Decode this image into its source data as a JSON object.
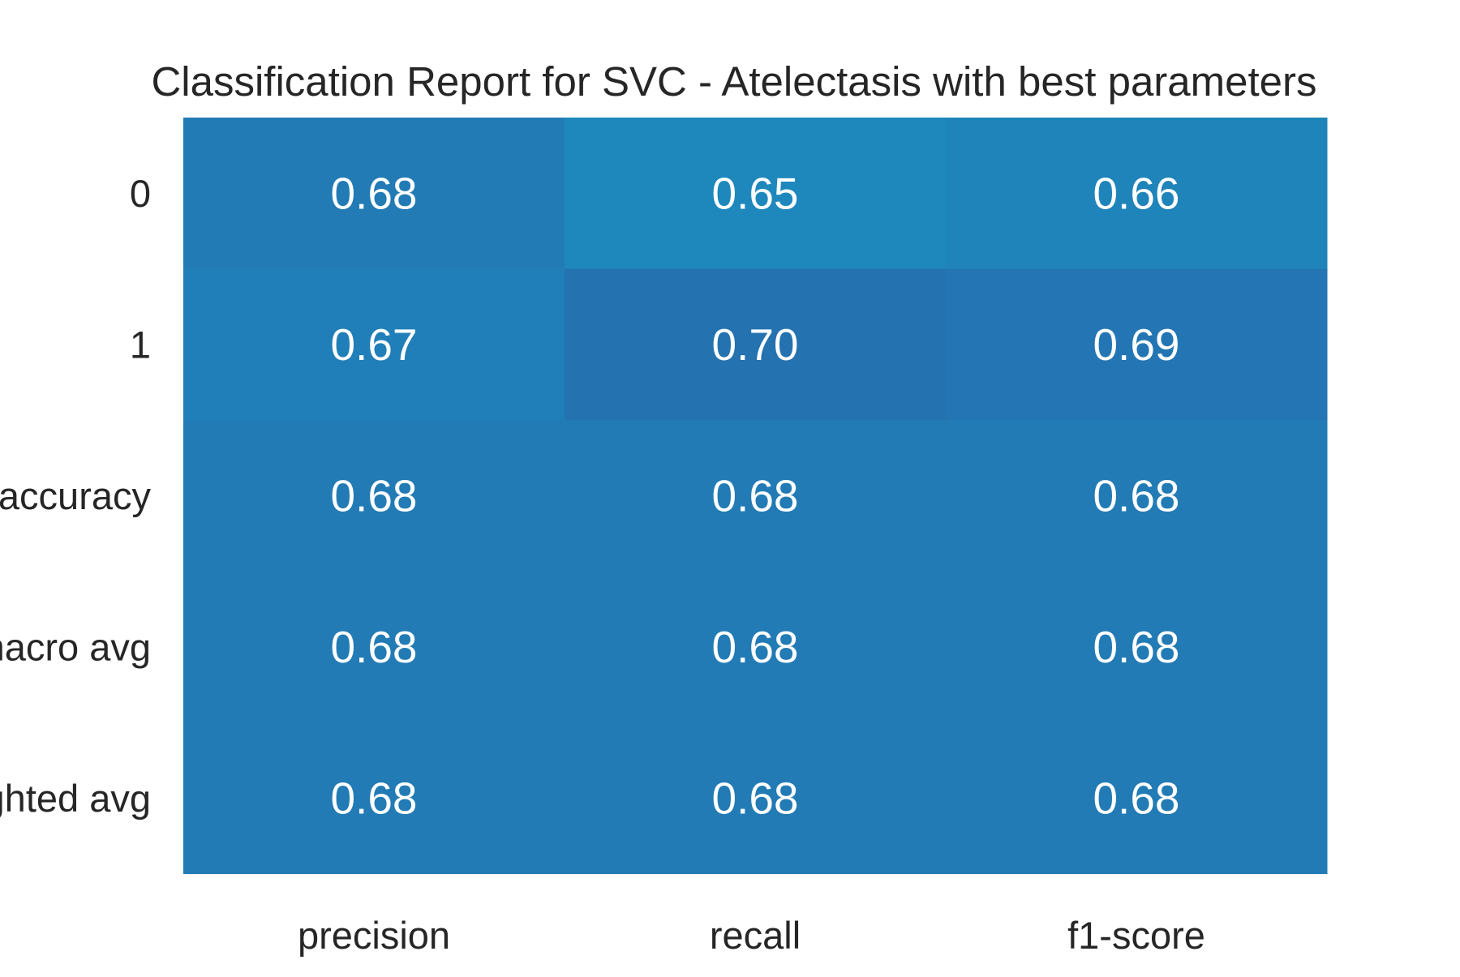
{
  "chart_data": {
    "type": "heatmap",
    "title": "Classification Report for SVC - Atelectasis with best parameters",
    "xlabel": "",
    "ylabel": "",
    "columns": [
      "precision",
      "recall",
      "f1-score"
    ],
    "rows": [
      "0",
      "1",
      "accuracy",
      "macro avg",
      "weighted avg"
    ],
    "values": [
      [
        "0.68",
        "0.65",
        "0.66"
      ],
      [
        "0.67",
        "0.70",
        "0.69"
      ],
      [
        "0.68",
        "0.68",
        "0.68"
      ],
      [
        "0.68",
        "0.68",
        "0.68"
      ],
      [
        "0.68",
        "0.68",
        "0.68"
      ]
    ],
    "colorbar": false,
    "grid": false,
    "colors": {
      "low": "#1e88bd",
      "high": "#2472b0"
    }
  }
}
